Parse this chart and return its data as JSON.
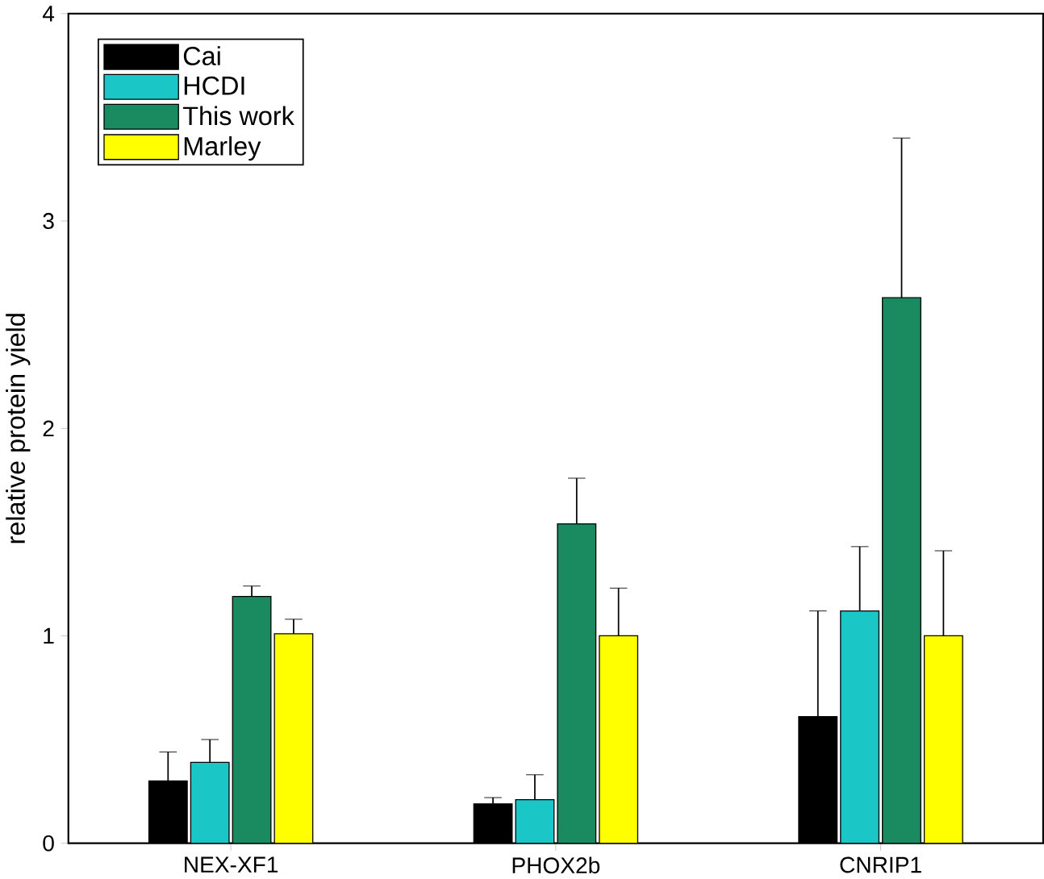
{
  "chart_data": {
    "type": "bar",
    "ylabel": "relative protein yield",
    "categories": [
      "NEX-XF1",
      "PHOX2b",
      "CNRIP1"
    ],
    "series": [
      {
        "name": "Cai",
        "color": "#000000",
        "values": [
          0.3,
          0.19,
          0.61
        ],
        "errors": [
          0.14,
          0.03,
          0.51
        ]
      },
      {
        "name": "HCDI",
        "color": "#1ac6c6",
        "values": [
          0.39,
          0.21,
          1.12
        ],
        "errors": [
          0.11,
          0.12,
          0.31
        ]
      },
      {
        "name": "This work",
        "color": "#1a8a60",
        "values": [
          1.19,
          1.54,
          2.63
        ],
        "errors": [
          0.05,
          0.22,
          0.77
        ]
      },
      {
        "name": "Marley",
        "color": "#ffff00",
        "values": [
          1.01,
          1.0,
          1.0
        ],
        "errors": [
          0.07,
          0.23,
          0.41
        ]
      }
    ],
    "ylim": [
      0,
      4
    ],
    "yticks": [
      0,
      1,
      2,
      3,
      4
    ],
    "grid": false,
    "legend": "top left"
  }
}
